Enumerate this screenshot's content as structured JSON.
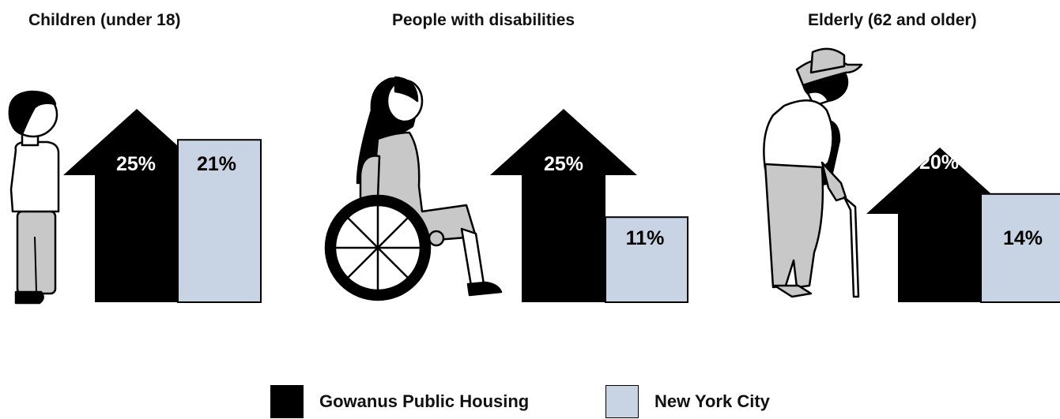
{
  "chart_data": {
    "type": "bar",
    "categories": [
      "Children (under 18)",
      "People with disabilities",
      "Elderly (62 and older)"
    ],
    "series": [
      {
        "name": "Gowanus Public Housing",
        "values": [
          25,
          25,
          20
        ],
        "labels": [
          "25%",
          "25%",
          "20%"
        ]
      },
      {
        "name": "New York City",
        "values": [
          21,
          11,
          14
        ],
        "labels": [
          "21%",
          "11%",
          "14%"
        ]
      }
    ],
    "colors": {
      "gowanus": "#000000",
      "nyc": "#c8d4e3",
      "figure_fill": "#c8c8c8"
    },
    "icons": [
      "child-figure-icon",
      "wheelchair-user-icon",
      "elderly-with-cane-icon"
    ],
    "legend": {
      "position": "bottom-center",
      "items": [
        {
          "label": "Gowanus Public Housing",
          "color": "#000000"
        },
        {
          "label": "New York City",
          "color": "#c8d4e3"
        }
      ]
    }
  }
}
